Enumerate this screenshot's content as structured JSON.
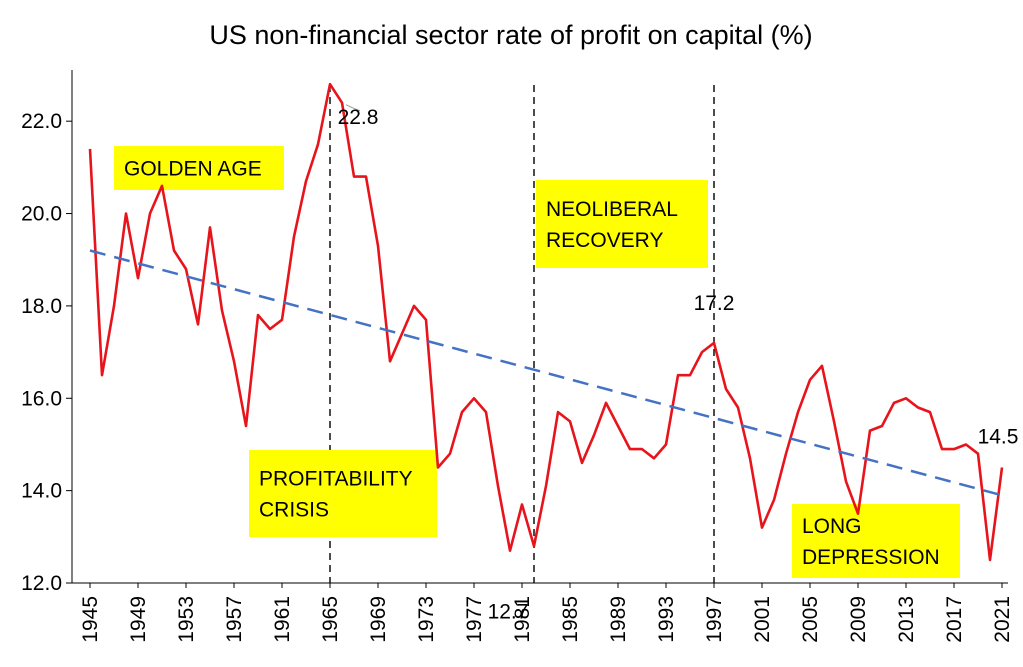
{
  "chart_data": {
    "type": "line",
    "title": "US non-financial sector rate of profit on capital (%)",
    "xlabel": "",
    "ylabel": "",
    "xlim": [
      1945,
      2021
    ],
    "ylim": [
      12.0,
      23.0
    ],
    "yticks": [
      12.0,
      14.0,
      16.0,
      18.0,
      20.0,
      22.0
    ],
    "xticks": [
      1945,
      1949,
      1953,
      1957,
      1961,
      1965,
      1969,
      1973,
      1977,
      1981,
      1985,
      1989,
      1993,
      1997,
      2001,
      2005,
      2009,
      2013,
      2017,
      2021
    ],
    "grid": false,
    "legend": "none",
    "series": [
      {
        "color": "#e8141b",
        "x": [
          1945,
          1946,
          1947,
          1948,
          1949,
          1950,
          1951,
          1952,
          1953,
          1954,
          1955,
          1956,
          1957,
          1958,
          1959,
          1960,
          1961,
          1962,
          1963,
          1964,
          1965,
          1966,
          1967,
          1968,
          1969,
          1970,
          1971,
          1972,
          1973,
          1974,
          1975,
          1976,
          1977,
          1978,
          1979,
          1980,
          1981,
          1982,
          1983,
          1984,
          1985,
          1986,
          1987,
          1988,
          1989,
          1990,
          1991,
          1992,
          1993,
          1994,
          1995,
          1996,
          1997,
          1998,
          1999,
          2000,
          2001,
          2002,
          2003,
          2004,
          2005,
          2006,
          2007,
          2008,
          2009,
          2010,
          2011,
          2012,
          2013,
          2014,
          2015,
          2016,
          2017,
          2018,
          2019,
          2020,
          2021
        ],
        "values": [
          21.4,
          16.5,
          18.0,
          20.0,
          18.6,
          20.0,
          20.6,
          19.2,
          18.8,
          17.6,
          19.7,
          17.9,
          16.8,
          15.4,
          17.8,
          17.5,
          17.7,
          19.5,
          20.7,
          21.5,
          22.8,
          22.4,
          20.8,
          20.8,
          19.3,
          16.8,
          17.4,
          18.0,
          17.7,
          14.5,
          14.8,
          15.7,
          16.0,
          15.7,
          14.1,
          12.7,
          13.7,
          12.8,
          14.1,
          15.7,
          15.5,
          14.6,
          15.2,
          15.9,
          15.4,
          14.9,
          14.9,
          14.7,
          15.0,
          16.5,
          16.5,
          17.0,
          17.2,
          16.2,
          15.8,
          14.7,
          13.2,
          13.8,
          14.8,
          15.7,
          16.4,
          16.7,
          15.5,
          14.2,
          13.5,
          15.3,
          15.4,
          15.9,
          16.0,
          15.8,
          15.7,
          14.9,
          14.9,
          15.0,
          14.8,
          12.5,
          14.5
        ]
      },
      {
        "color": "#4472c4",
        "dashed": true,
        "x": [
          1945,
          2021
        ],
        "values": [
          19.2,
          13.9
        ]
      }
    ],
    "vertical_lines": [
      1965,
      1982,
      1997
    ],
    "annotations": [
      {
        "text": "22.8",
        "x": 1965,
        "y": 22.8
      },
      {
        "text": "12.7",
        "x": 1980,
        "y": 12.7
      },
      {
        "text": "17.2",
        "x": 1997,
        "y": 17.2
      },
      {
        "text": "14.5",
        "x": 2021,
        "y": 14.5
      }
    ],
    "labels": [
      {
        "lines": [
          "GOLDEN AGE"
        ]
      },
      {
        "lines": [
          "NEOLIBERAL",
          "RECOVERY"
        ]
      },
      {
        "lines": [
          "PROFITABILITY",
          "CRISIS"
        ]
      },
      {
        "lines": [
          "LONG",
          "DEPRESSION"
        ]
      }
    ],
    "label_color": "#ffff00"
  }
}
